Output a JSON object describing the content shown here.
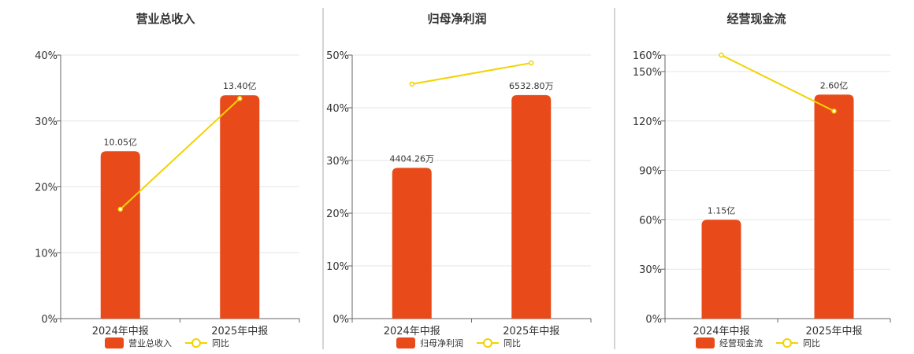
{
  "colors": {
    "bar": "#e84a1a",
    "line": "#f2d300",
    "grid": "#e6e6e6",
    "axis": "#666666",
    "divider": "#aaaaaa"
  },
  "legend": {
    "line_label": "同比"
  },
  "chart_data": [
    {
      "type": "bar",
      "title": "营业总收入",
      "categories": [
        "2024年中报",
        "2025年中报"
      ],
      "ylim": [
        0,
        40
      ],
      "yticks": [
        0,
        10,
        20,
        30,
        40
      ],
      "ytick_labels": [
        "0%",
        "10%",
        "20%",
        "30%",
        "40%"
      ],
      "series": [
        {
          "name": "营业总收入",
          "kind": "bar",
          "values": [
            25.4,
            33.9
          ],
          "labels": [
            "10.05亿",
            "13.40亿"
          ]
        },
        {
          "name": "同比",
          "kind": "line",
          "values": [
            16.6,
            33.4
          ]
        }
      ]
    },
    {
      "type": "bar",
      "title": "归母净利润",
      "categories": [
        "2024年中报",
        "2025年中报"
      ],
      "ylim": [
        0,
        50
      ],
      "yticks": [
        0,
        10,
        20,
        30,
        40,
        50
      ],
      "ytick_labels": [
        "0%",
        "10%",
        "20%",
        "30%",
        "40%",
        "50%"
      ],
      "series": [
        {
          "name": "归母净利润",
          "kind": "bar",
          "values": [
            28.6,
            42.4
          ],
          "labels": [
            "4404.26万",
            "6532.80万"
          ]
        },
        {
          "name": "同比",
          "kind": "line",
          "values": [
            44.5,
            48.5
          ]
        }
      ]
    },
    {
      "type": "bar",
      "title": "经营现金流",
      "categories": [
        "2024年中报",
        "2025年中报"
      ],
      "ylim": [
        0,
        160
      ],
      "yticks": [
        0,
        30,
        60,
        90,
        120,
        150,
        160
      ],
      "ytick_labels": [
        "0%",
        "30%",
        "60%",
        "90%",
        "120%",
        "150%",
        "160%"
      ],
      "series": [
        {
          "name": "经营现金流",
          "kind": "bar",
          "values": [
            60,
            136
          ],
          "labels": [
            "1.15亿",
            "2.60亿"
          ]
        },
        {
          "name": "同比",
          "kind": "line",
          "values": [
            160,
            126
          ]
        }
      ]
    }
  ]
}
